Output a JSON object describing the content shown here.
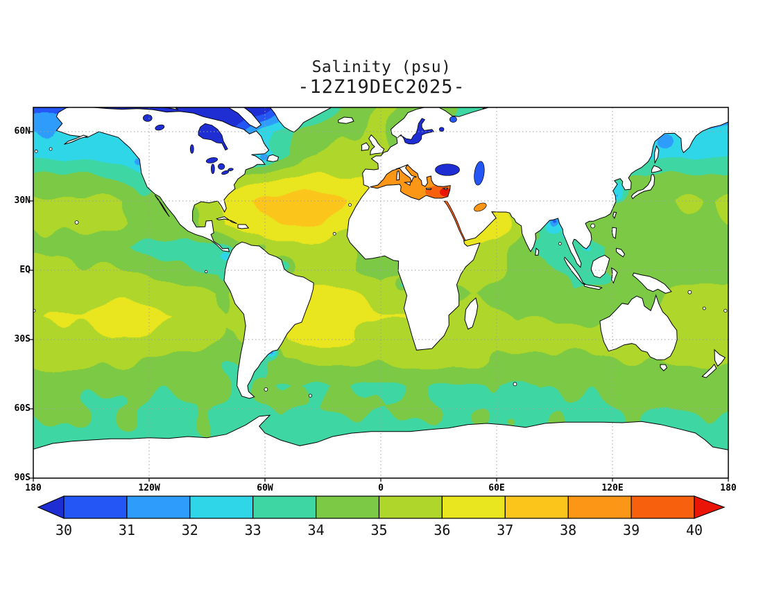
{
  "title": {
    "line1": "Sal inity (psu)",
    "line2": "-12Z19DEC2025-"
  },
  "map": {
    "lat_ticks": [
      {
        "label": "60N",
        "lat": 60
      },
      {
        "label": "30N",
        "lat": 30
      },
      {
        "label": "EQ",
        "lat": 0
      },
      {
        "label": "30S",
        "lat": -30
      },
      {
        "label": "60S",
        "lat": -60
      },
      {
        "label": "90S",
        "lat": -90
      }
    ],
    "lon_ticks": [
      {
        "label": "180",
        "lon": -180
      },
      {
        "label": "120W",
        "lon": -120
      },
      {
        "label": "60W",
        "lon": -60
      },
      {
        "label": "0",
        "lon": 0
      },
      {
        "label": "60E",
        "lon": 60
      },
      {
        "label": "120E",
        "lon": 120
      },
      {
        "label": "180",
        "lon": 180
      }
    ],
    "grid_lats": [
      60,
      30,
      0,
      -30,
      -60
    ],
    "grid_lons": [
      -120,
      -60,
      0,
      60,
      120
    ],
    "colors": {
      "land": "#ffffff",
      "coastline": "#000000",
      "grid": "#a0a0a0",
      "frame": "#000000"
    }
  },
  "colorbar": {
    "labels": [
      "30",
      "31",
      "32",
      "33",
      "34",
      "35",
      "36",
      "37",
      "38",
      "39",
      "40"
    ],
    "colors": [
      "#1e2ed2",
      "#2356f5",
      "#2d9cfa",
      "#2fd6e8",
      "#3ed7a4",
      "#7bc944",
      "#aed62b",
      "#e9e51e",
      "#fcc51b",
      "#fc9616",
      "#f7600c",
      "#ea1507"
    ],
    "min": 30,
    "max": 40
  },
  "chart_data": {
    "type": "heatmap",
    "title": "Salinity (psu)",
    "subtitle": "-12Z19DEC2025-",
    "units": "psu",
    "projection": "equirectangular",
    "x_axis": {
      "label": "longitude",
      "ticks": [
        "180",
        "120W",
        "60W",
        "0",
        "60E",
        "120E",
        "180"
      ]
    },
    "y_axis": {
      "label": "latitude",
      "ticks": [
        "60N",
        "30N",
        "EQ",
        "30S",
        "60S",
        "90S"
      ]
    },
    "value_range": [
      30,
      40
    ],
    "grid": {
      "lats": [
        70,
        60,
        50,
        40,
        30,
        20,
        10,
        0,
        -10,
        -20,
        -30,
        -40,
        -50,
        -60,
        -70,
        -80,
        -90
      ],
      "lons": [
        -180,
        -160,
        -140,
        -120,
        -100,
        -80,
        -60,
        -40,
        -20,
        0,
        20,
        40,
        60,
        80,
        100,
        120,
        140,
        160,
        180
      ],
      "values": [
        [
          30.6,
          30.8,
          29,
          28.2,
          28,
          28.5,
          29.5,
          32.5,
          34.2,
          35,
          34.6,
          34,
          33,
          32,
          30,
          29.5,
          29.5,
          30.5,
          31
        ],
        [
          32,
          32.2,
          32.3,
          31.5,
          28,
          29.5,
          32.8,
          34.3,
          35,
          35.2,
          33.5,
          33.5,
          33,
          33,
          32,
          32,
          32.2,
          32.4,
          32.4
        ],
        [
          32.7,
          32.6,
          32.5,
          32.3,
          32,
          31,
          32.8,
          34.6,
          35.3,
          35.3,
          34,
          33.5,
          34,
          34,
          34,
          33,
          32.8,
          32.8,
          32.8
        ],
        [
          34.2,
          34.4,
          33.8,
          33.2,
          34,
          35,
          35.8,
          36.3,
          36.2,
          36,
          37,
          37,
          36,
          35,
          34,
          34,
          34.3,
          34.4,
          34.3
        ],
        [
          35.1,
          35.3,
          35.4,
          34.8,
          35,
          36.3,
          37,
          37.3,
          37,
          36.6,
          37.6,
          38,
          36.5,
          35.5,
          34.5,
          34.6,
          34.8,
          35,
          35.1
        ],
        [
          35,
          35.2,
          35.1,
          34.6,
          34.5,
          36.2,
          36.6,
          37,
          36.5,
          35.8,
          36,
          37,
          36.4,
          34.5,
          33.8,
          34.4,
          34.8,
          35,
          35.2
        ],
        [
          34.8,
          34.9,
          34.4,
          33.8,
          33.5,
          33.8,
          35.5,
          35.8,
          35.3,
          34.5,
          35,
          36,
          35.8,
          33.8,
          33.5,
          34,
          34.3,
          34.6,
          34.8
        ],
        [
          35.2,
          35.1,
          35,
          34.8,
          34,
          33.8,
          34.8,
          35.7,
          35.4,
          34.8,
          35,
          35.2,
          35.3,
          34.3,
          33.8,
          34.2,
          34.5,
          34.8,
          35
        ],
        [
          35.5,
          35.6,
          35.8,
          35.5,
          35.2,
          35,
          35.5,
          36.2,
          36,
          35.5,
          35.2,
          35,
          34.8,
          34.5,
          34.2,
          34.3,
          34.8,
          35,
          35.3
        ],
        [
          35.8,
          36,
          36.3,
          36.2,
          35.8,
          35.2,
          36,
          36.9,
          36.5,
          36,
          35.8,
          35.3,
          35.2,
          34.9,
          34.7,
          34.9,
          35.3,
          35.5,
          35.7
        ],
        [
          35.6,
          35.7,
          35.9,
          35.8,
          35.5,
          34.8,
          35.5,
          36.3,
          36.2,
          35.8,
          35.5,
          35.4,
          35.3,
          35.2,
          35.3,
          35.6,
          35.6,
          35.6,
          35.6
        ],
        [
          35.2,
          35.2,
          35.1,
          35,
          34.6,
          34.2,
          34,
          35.2,
          35.1,
          35,
          35.2,
          35.3,
          34.8,
          34.6,
          34.8,
          35,
          35.1,
          35.2,
          35.2
        ],
        [
          34.3,
          34.3,
          34.2,
          34.1,
          34.1,
          34,
          33.9,
          34,
          34,
          34,
          34.1,
          34,
          33.9,
          33.9,
          34,
          34.2,
          34.3,
          34.4,
          34.3
        ],
        [
          34.1,
          34.1,
          34,
          34,
          34,
          34,
          33.9,
          34,
          34,
          34,
          34,
          33.9,
          33.9,
          33.9,
          34,
          34.1,
          34.1,
          34.1,
          34.1
        ],
        [
          33.8,
          33.8,
          33.8,
          33.8,
          33.8,
          33.8,
          33.8,
          33.8,
          33.8,
          33.8,
          33.8,
          33.8,
          33.8,
          33.8,
          33.8,
          33.8,
          33.8,
          33.8,
          33.8
        ],
        [
          33.8,
          33.8,
          33.8,
          33.8,
          33.8,
          33.8,
          33.8,
          33.8,
          33.8,
          33.8,
          33.8,
          33.8,
          33.8,
          33.8,
          33.8,
          33.8,
          33.8,
          33.8,
          33.8
        ],
        [
          33.8,
          33.8,
          33.8,
          33.8,
          33.8,
          33.8,
          33.8,
          33.8,
          33.8,
          33.8,
          33.8,
          33.8,
          33.8,
          33.8,
          33.8,
          33.8,
          33.8,
          33.8,
          33.8
        ]
      ]
    },
    "features": [
      {
        "name": "amazon-plume",
        "lon": -50,
        "lat": 2,
        "sx": 5,
        "sy": 3.5,
        "amp": -1.6
      },
      {
        "name": "orinoco-plume",
        "lon": -61.5,
        "lat": 10,
        "sx": 2.5,
        "sy": 1.5,
        "amp": -1.2
      },
      {
        "name": "rio-de-la-plata",
        "lon": -56.5,
        "lat": -35.5,
        "sx": 3.5,
        "sy": 2.5,
        "amp": -3.2
      },
      {
        "name": "st-lawrence",
        "lon": -60,
        "lat": 48.5,
        "sx": 3,
        "sy": 2,
        "amp": -1.6
      },
      {
        "name": "bay-of-bengal",
        "lon": 89,
        "lat": 19,
        "sx": 5.5,
        "sy": 4,
        "amp": -2.2
      },
      {
        "name": "ganges-delta",
        "lon": 90,
        "lat": 21.5,
        "sx": 2.5,
        "sy": 1.5,
        "amp": -2.2
      },
      {
        "name": "irrawaddy",
        "lon": 96,
        "lat": 15,
        "sx": 2,
        "sy": 1.5,
        "amp": -1.4
      },
      {
        "name": "mekong",
        "lon": 107,
        "lat": 9.5,
        "sx": 2.5,
        "sy": 1.5,
        "amp": -1.2
      },
      {
        "name": "yellow-sea",
        "lon": 122,
        "lat": 35,
        "sx": 5,
        "sy": 4,
        "amp": -2.2
      },
      {
        "name": "yangtze",
        "lon": 122.5,
        "lat": 31.5,
        "sx": 3,
        "sy": 2,
        "amp": -1.5
      },
      {
        "name": "sea-of-okhotsk",
        "lon": 147,
        "lat": 55,
        "sx": 6,
        "sy": 4,
        "amp": -1.1
      },
      {
        "name": "gulf-of-panama",
        "lon": -80,
        "lat": 6,
        "sx": 4,
        "sy": 2.5,
        "amp": -1.2
      },
      {
        "name": "gulf-of-guinea",
        "lon": 3,
        "lat": 3,
        "sx": 5,
        "sy": 2.5,
        "amp": -0.9
      },
      {
        "name": "congo-plume",
        "lon": 11,
        "lat": -6.5,
        "sx": 2.5,
        "sy": 2,
        "amp": -1.4
      },
      {
        "name": "guayaquil",
        "lon": -81,
        "lat": -3,
        "sx": 2,
        "sy": 1.5,
        "amp": -1
      },
      {
        "name": "columbia-river",
        "lon": -126,
        "lat": 46.5,
        "sx": 2.5,
        "sy": 2,
        "amp": -0.8
      },
      {
        "name": "california-current",
        "lon": -123,
        "lat": 33,
        "sx": 4,
        "sy": 5,
        "amp": -0.5
      },
      {
        "name": "north-atlantic-salinity-max",
        "lon": -45,
        "lat": 25,
        "sx": 16,
        "sy": 7,
        "amp": 0.7
      },
      {
        "name": "south-atlantic-salinity-max",
        "lon": -18,
        "lat": -14,
        "sx": 10,
        "sy": 6,
        "amp": 0.55
      },
      {
        "name": "south-pacific-salinity-max",
        "lon": -127,
        "lat": -19,
        "sx": 14,
        "sy": 6,
        "amp": 0.6
      },
      {
        "name": "indian-subtropical-max",
        "lon": 75,
        "lat": -32,
        "sx": 12,
        "sy": 5,
        "amp": 0.5
      },
      {
        "name": "arabian-sea-max",
        "lon": 62,
        "lat": 18,
        "sx": 8,
        "sy": 5,
        "amp": 0.5
      },
      {
        "name": "indonesian-fresh",
        "lon": 115,
        "lat": -4,
        "sx": 10,
        "sy": 4,
        "amp": -0.5
      }
    ],
    "inland_seas": {
      "hudson-bay": 28.5,
      "baltic-sea": 29,
      "black-sea": 26,
      "caspian-sea": 30.5,
      "white-sea": 30.5,
      "great-lakes": 28,
      "great-bear-lake": 28,
      "great-slave-lake": 28,
      "lake-winnipeg": 28,
      "lake-ladoga": 28,
      "mediterranean-west": 38.5,
      "mediterranean-east": 39.5,
      "levantine-basin": 40.2,
      "red-sea": 39.6,
      "persian-gulf": 38.5
    }
  }
}
